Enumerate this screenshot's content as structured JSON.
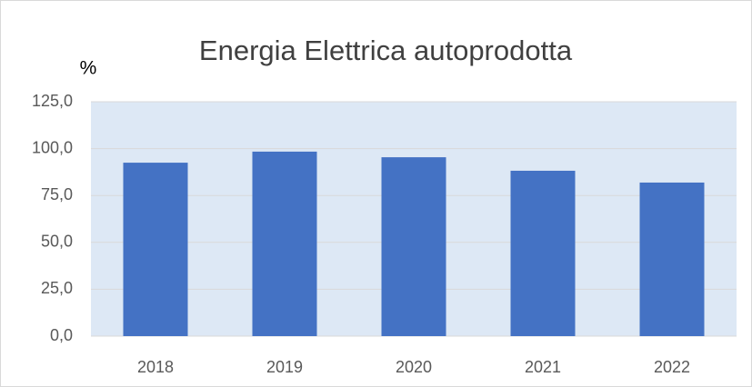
{
  "chart_data": {
    "type": "bar",
    "title": "Energia Elettrica autoprodotta",
    "y_label": "%",
    "categories": [
      "2018",
      "2019",
      "2020",
      "2021",
      "2022"
    ],
    "values": [
      92.5,
      98.4,
      95.4,
      88.2,
      81.9
    ],
    "color": "#4472c4",
    "ylim": [
      0,
      125
    ],
    "yticks": [
      {
        "value": 0,
        "label": "0,0"
      },
      {
        "value": 25,
        "label": "25,0"
      },
      {
        "value": 50,
        "label": "50,0"
      },
      {
        "value": 75,
        "label": "75,0"
      },
      {
        "value": 100,
        "label": "100,0"
      },
      {
        "value": 125,
        "label": "125,0"
      }
    ],
    "grid": true
  }
}
